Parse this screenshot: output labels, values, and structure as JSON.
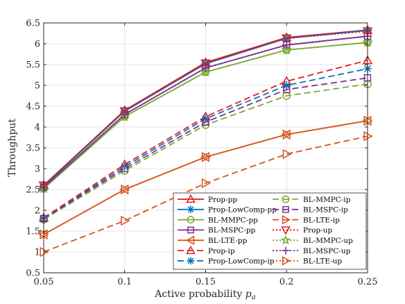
{
  "chart_data": {
    "type": "line",
    "xlabel": "Active probability",
    "xlabel_var": "p",
    "xlabel_sub": "a",
    "ylabel": "Throughput",
    "x": [
      0.05,
      0.1,
      0.15,
      0.2,
      0.25
    ],
    "xticks": [
      "0.05",
      "0.1",
      "0.15",
      "0.2",
      "0.25"
    ],
    "yticks": [
      "0.5",
      "1",
      "1.5",
      "2",
      "2.5",
      "3",
      "3.5",
      "4",
      "4.5",
      "5",
      "5.5",
      "6",
      "6.5"
    ],
    "xlim": [
      0.05,
      0.25
    ],
    "ylim": [
      0.5,
      6.5
    ],
    "grid": true,
    "legend_position": "bottom-right",
    "series": [
      {
        "name": "Prop-pp",
        "values": [
          2.6,
          4.4,
          5.55,
          6.15,
          6.33
        ],
        "color": "#e31a1c",
        "dash": "solid",
        "marker": "triangle-up"
      },
      {
        "name": "Prop-LowComp-pp",
        "values": [
          2.58,
          4.38,
          5.52,
          6.13,
          6.32
        ],
        "color": "#0072bd",
        "dash": "solid",
        "marker": "asterisk"
      },
      {
        "name": "BL-MMPC-pp",
        "values": [
          2.52,
          4.25,
          5.32,
          5.85,
          6.03
        ],
        "color": "#77ac30",
        "dash": "solid",
        "marker": "circle"
      },
      {
        "name": "BL-MSPC-pp",
        "values": [
          2.55,
          4.3,
          5.42,
          5.97,
          6.18
        ],
        "color": "#7e2f8e",
        "dash": "solid",
        "marker": "square"
      },
      {
        "name": "BL-LTE-pp",
        "values": [
          1.42,
          2.5,
          3.28,
          3.82,
          4.15
        ],
        "color": "#d95319",
        "dash": "solid",
        "marker": "triangle-left"
      },
      {
        "name": "Prop-ip",
        "values": [
          1.82,
          3.1,
          4.25,
          5.1,
          5.6
        ],
        "color": "#e31a1c",
        "dash": "dashed",
        "marker": "triangle-up"
      },
      {
        "name": "Prop-LowComp-ip",
        "values": [
          1.8,
          3.05,
          4.2,
          5.0,
          5.4
        ],
        "color": "#0072bd",
        "dash": "dashed",
        "marker": "asterisk"
      },
      {
        "name": "BL-MMPC-ip",
        "values": [
          1.78,
          2.95,
          4.05,
          4.75,
          5.03
        ],
        "color": "#77ac30",
        "dash": "dashed",
        "marker": "circle"
      },
      {
        "name": "BL-MSPC-ip",
        "values": [
          1.8,
          3.0,
          4.12,
          4.9,
          5.18
        ],
        "color": "#7e2f8e",
        "dash": "dashed",
        "marker": "square"
      },
      {
        "name": "BL-LTE-ip",
        "values": [
          1.0,
          1.75,
          2.65,
          3.35,
          3.78
        ],
        "color": "#d95319",
        "dash": "dashed",
        "marker": "triangle-right"
      },
      {
        "name": "Prop-up",
        "values": [
          2.6,
          4.38,
          5.53,
          6.13,
          6.3
        ],
        "color": "#e31a1c",
        "dash": "dotted",
        "marker": "triangle-down"
      },
      {
        "name": "BL-MMPC-up",
        "values": [
          2.52,
          4.25,
          5.32,
          5.85,
          6.03
        ],
        "color": "#77ac30",
        "dash": "dotted",
        "marker": "pentagram"
      },
      {
        "name": "BL-MSPC-up",
        "values": [
          2.55,
          4.3,
          5.42,
          5.97,
          6.18
        ],
        "color": "#7e2f8e",
        "dash": "dotted",
        "marker": "plus"
      },
      {
        "name": "BL-LTE-up",
        "values": [
          1.42,
          2.5,
          3.28,
          3.82,
          4.15
        ],
        "color": "#d95319",
        "dash": "dotted",
        "marker": "triangle-right"
      }
    ]
  }
}
